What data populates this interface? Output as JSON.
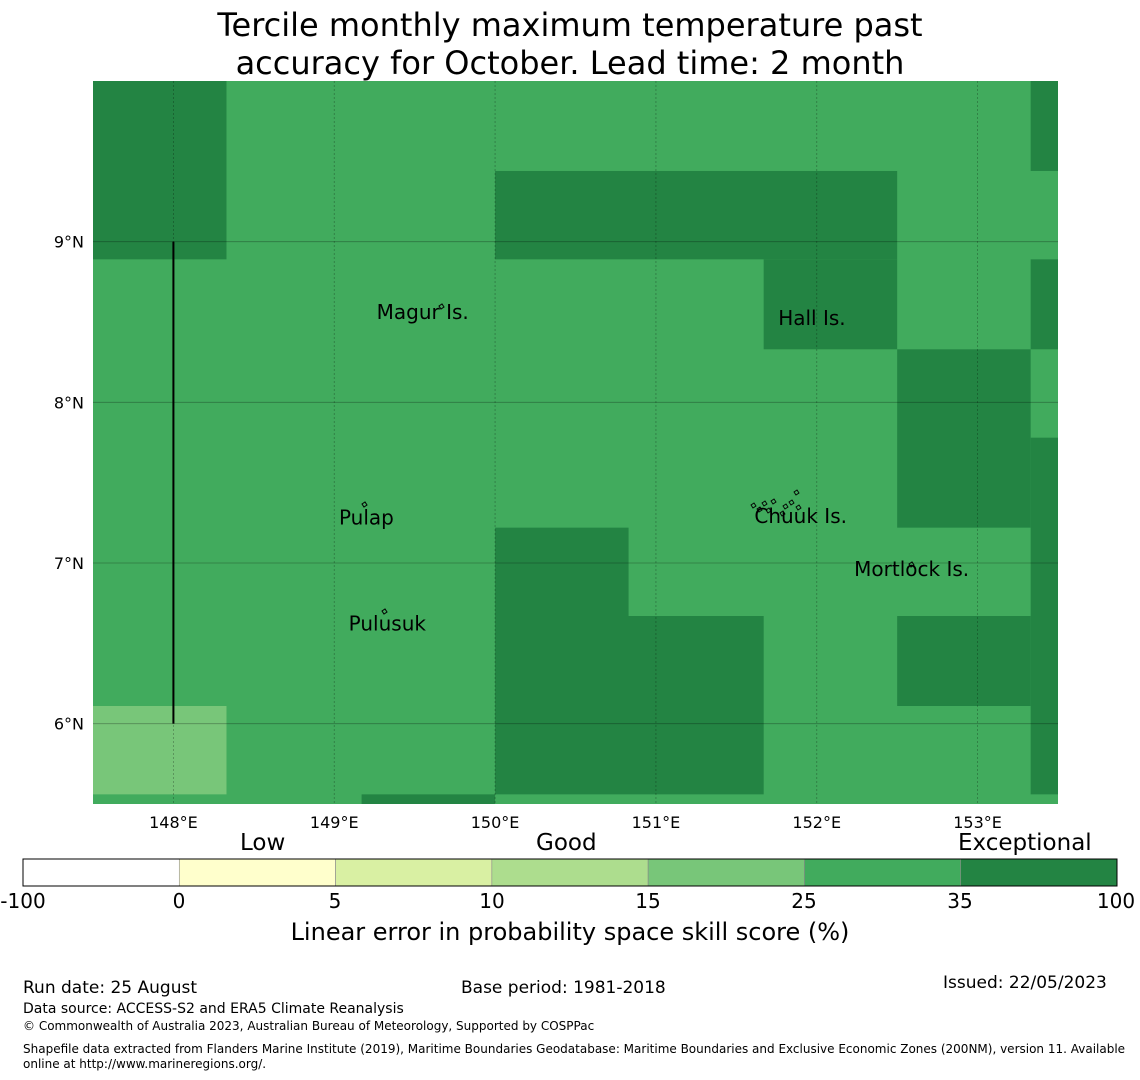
{
  "title_line1": "Tercile monthly maximum temperature past",
  "title_line2": "accuracy for October. Lead time: 2 month",
  "map": {
    "extent": {
      "lon_min": 147.5,
      "lon_max": 153.5,
      "lat_min": 5.5,
      "lat_max": 10.0
    },
    "lon_ticks": [
      148,
      149,
      150,
      151,
      152,
      153
    ],
    "lon_tick_labels": [
      "148°E",
      "149°E",
      "150°E",
      "151°E",
      "152°E",
      "153°E"
    ],
    "lat_ticks": [
      6,
      7,
      8,
      9
    ],
    "lat_tick_labels": [
      "6°N",
      "7°N",
      "8°N",
      "9°N"
    ],
    "base_class": 5,
    "cells": [
      {
        "lon0": 147.5,
        "lon1": 148.33,
        "lat0": 8.89,
        "lat1": 10.0,
        "class": 6
      },
      {
        "lon0": 150.0,
        "lon1": 152.5,
        "lat0": 8.89,
        "lat1": 9.44,
        "class": 6
      },
      {
        "lon0": 151.67,
        "lon1": 152.5,
        "lat0": 8.33,
        "lat1": 8.89,
        "class": 6
      },
      {
        "lon0": 153.33,
        "lon1": 153.5,
        "lat0": 9.44,
        "lat1": 10.0,
        "class": 6
      },
      {
        "lon0": 153.33,
        "lon1": 153.5,
        "lat0": 8.33,
        "lat1": 8.89,
        "class": 6
      },
      {
        "lon0": 152.5,
        "lon1": 153.33,
        "lat0": 7.22,
        "lat1": 8.33,
        "class": 6
      },
      {
        "lon0": 153.33,
        "lon1": 153.5,
        "lat0": 5.56,
        "lat1": 7.78,
        "class": 6
      },
      {
        "lon0": 150.0,
        "lon1": 150.83,
        "lat0": 6.67,
        "lat1": 7.22,
        "class": 6
      },
      {
        "lon0": 150.0,
        "lon1": 151.67,
        "lat0": 5.56,
        "lat1": 6.67,
        "class": 6
      },
      {
        "lon0": 152.5,
        "lon1": 153.33,
        "lat0": 6.11,
        "lat1": 6.67,
        "class": 6
      },
      {
        "lon0": 149.17,
        "lon1": 150.0,
        "lat0": 5.5,
        "lat1": 5.56,
        "class": 6
      },
      {
        "lon0": 147.5,
        "lon1": 148.33,
        "lat0": 5.56,
        "lat1": 6.11,
        "class": 4
      }
    ],
    "boundary_line": {
      "lon": 148.0,
      "lat0": 6.0,
      "lat1": 9.0
    },
    "places": [
      {
        "name": "Magur Is.",
        "lon": 149.55,
        "lat": 8.52
      },
      {
        "name": "Hall Is.",
        "lon": 151.97,
        "lat": 8.48
      },
      {
        "name": "Pulap",
        "lon": 149.2,
        "lat": 7.24
      },
      {
        "name": "Chuuk Is.",
        "lon": 151.9,
        "lat": 7.25
      },
      {
        "name": "Mortlock Is.",
        "lon": 152.59,
        "lat": 6.92
      },
      {
        "name": "Pulusuk",
        "lon": 149.33,
        "lat": 6.58
      }
    ]
  },
  "colorbar": {
    "categories": [
      "Low",
      "Good",
      "Exceptional"
    ],
    "tick_labels": [
      "-100",
      "0",
      "5",
      "10",
      "15",
      "25",
      "35",
      "100"
    ],
    "colors": [
      "#ffffff",
      "#ffffcc",
      "#d9f0a3",
      "#addd8e",
      "#78c679",
      "#41ab5d",
      "#238443"
    ],
    "label": "Linear error in probability space skill score (%)"
  },
  "footer": {
    "run_date": "Run date: 25 August",
    "base_period": "Base period: 1981-2018",
    "issued": "Issued: 22/05/2023",
    "data_source": "Data source: ACCESS-S2 and ERA5 Climate Reanalysis",
    "copyright": "© Commonwealth of Australia 2023, Australian Bureau of Meteorology, Supported by COSPPac",
    "shapefile_line1": "Shapefile data extracted from Flanders Marine Institute (2019), Maritime Boundaries Geodatabase: Maritime Boundaries and Exclusive Economic Zones (200NM), version 11. Available",
    "shapefile_line2": "online at http://www.marineregions.org/."
  }
}
